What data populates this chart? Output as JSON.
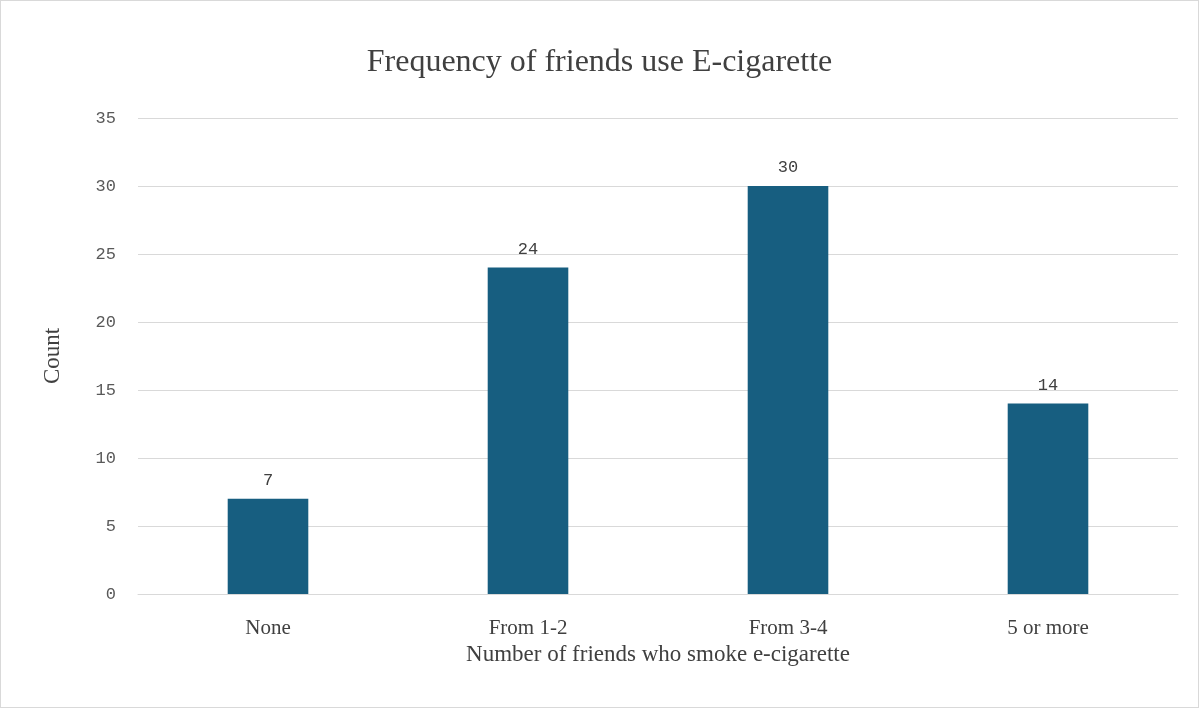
{
  "chart_data": {
    "type": "bar",
    "title": "Frequency of friends use E-cigarette",
    "xlabel": "Number of friends who smoke e-cigarette",
    "ylabel": "Count",
    "categories": [
      "None",
      "From 1-2",
      "From 3-4",
      "5 or more"
    ],
    "values": [
      7,
      24,
      30,
      14
    ],
    "color": "#175e80",
    "ylim": [
      0,
      35
    ],
    "yticks": [
      0,
      5,
      10,
      15,
      20,
      25,
      30,
      35
    ],
    "grid": "y",
    "data_labels": true
  }
}
